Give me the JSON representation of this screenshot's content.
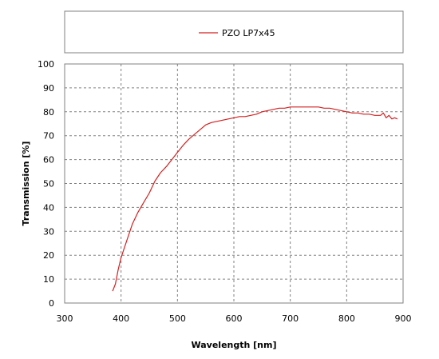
{
  "chart_data": {
    "type": "line",
    "title": "",
    "xlabel": "Wavelength [nm]",
    "ylabel": "Transmission [%]",
    "xlim": [
      300,
      900
    ],
    "ylim": [
      0,
      100
    ],
    "xticks": [
      300,
      400,
      500,
      600,
      700,
      800,
      900
    ],
    "yticks": [
      0,
      10,
      20,
      30,
      40,
      50,
      60,
      70,
      80,
      90,
      100
    ],
    "grid": true,
    "legend": "top-center",
    "series": [
      {
        "name": "PZO LP7x45",
        "color": "#d42020",
        "x": [
          385,
          390,
          395,
          400,
          410,
          420,
          430,
          440,
          450,
          460,
          470,
          480,
          490,
          500,
          510,
          520,
          530,
          540,
          550,
          560,
          570,
          580,
          590,
          600,
          610,
          620,
          630,
          640,
          650,
          660,
          670,
          680,
          690,
          700,
          710,
          720,
          730,
          740,
          750,
          760,
          770,
          780,
          790,
          800,
          810,
          820,
          830,
          840,
          850,
          860,
          865,
          870,
          875,
          880,
          885,
          890
        ],
        "y": [
          5,
          8,
          14,
          19,
          26,
          33,
          38,
          42,
          46,
          51,
          54.5,
          57,
          60,
          63,
          66,
          68.5,
          70.5,
          72.5,
          74.5,
          75.5,
          76,
          76.5,
          77,
          77.5,
          78,
          78,
          78.5,
          79,
          80,
          80.5,
          81,
          81.5,
          81.5,
          82,
          82,
          82,
          82,
          82,
          82,
          81.5,
          81.5,
          81,
          80.5,
          80,
          79.5,
          79.5,
          79,
          79,
          78.5,
          78.5,
          79.5,
          77.5,
          78.5,
          77,
          77.5,
          77
        ]
      }
    ]
  }
}
